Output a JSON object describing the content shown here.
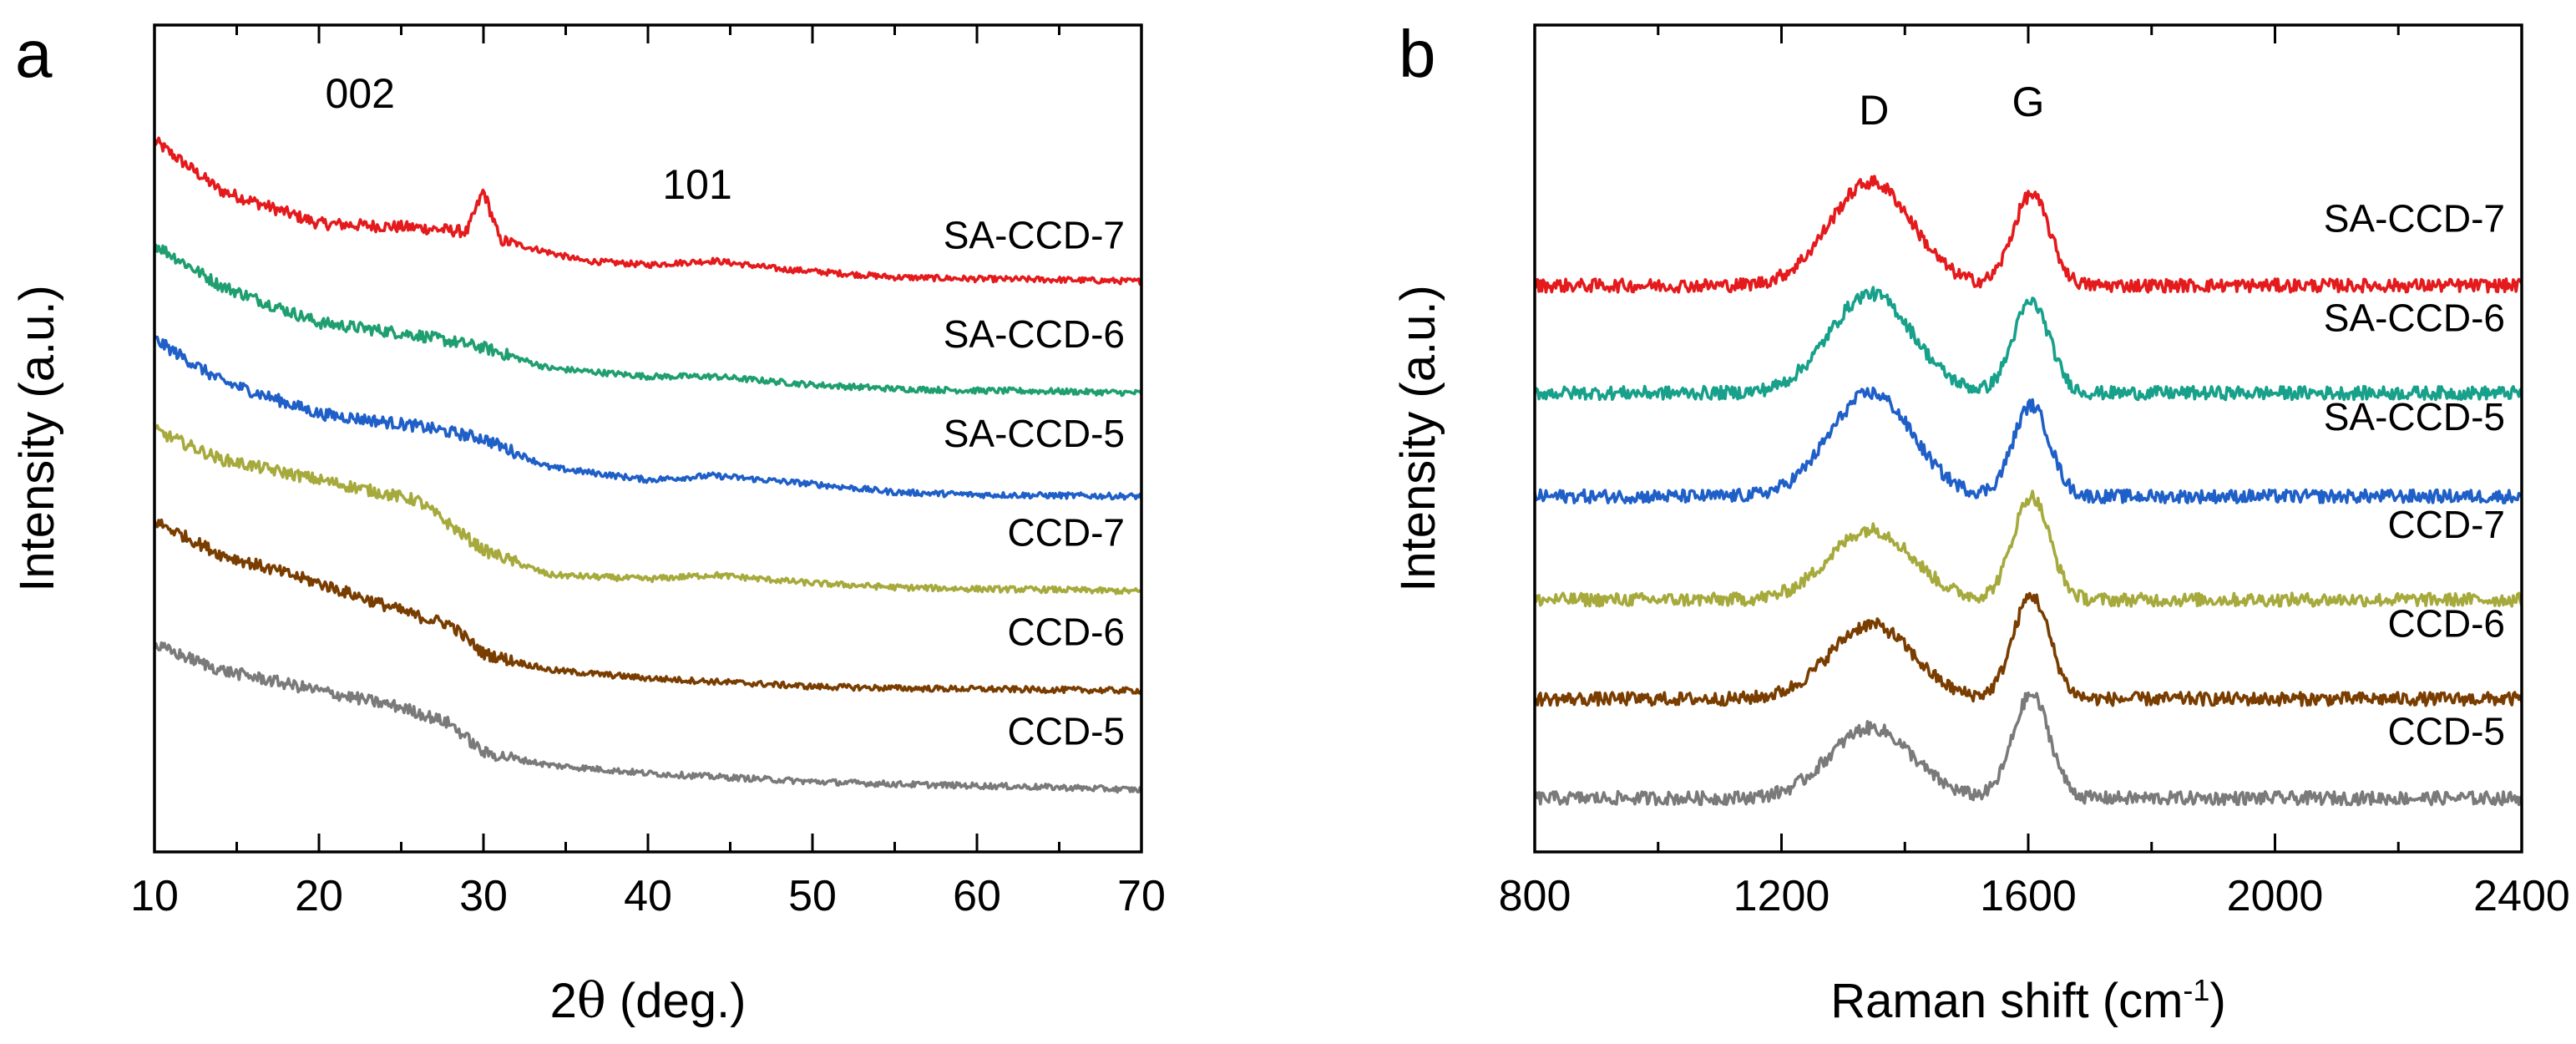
{
  "chart_data": [
    {
      "panel": "a",
      "type": "line",
      "xlabel_prefix": "2",
      "xlabel_symbol": "θ",
      "xlabel_suffix": " (deg.)",
      "ylabel": "Intensity (a.u.)",
      "xlim": [
        10,
        70
      ],
      "xticks": [
        "10",
        "20",
        "30",
        "40",
        "50",
        "60",
        "70"
      ],
      "ylim": [
        0,
        100
      ],
      "annotations": [
        {
          "text": "002",
          "x": 22.5,
          "y": 90
        },
        {
          "text": "101",
          "x": 43,
          "y": 79
        }
      ],
      "series": [
        {
          "name": "SA-CCD-7",
          "color": "#e41a1c",
          "label_y": 73,
          "x": [
            10,
            14,
            20,
            26,
            29,
            30,
            31,
            36,
            40,
            44,
            48,
            55,
            60,
            65,
            70
          ],
          "y": [
            86,
            80,
            76,
            75.5,
            75,
            80,
            74,
            71.5,
            71,
            71.5,
            70.5,
            69.5,
            69.3,
            69.2,
            69
          ]
        },
        {
          "name": "SA-CCD-6",
          "color": "#1f9f6f",
          "label_y": 61,
          "x": [
            10,
            14,
            20,
            26,
            30,
            34,
            40,
            44,
            50,
            55,
            60,
            65,
            70
          ],
          "y": [
            73.5,
            68.5,
            64,
            62.5,
            61,
            58.5,
            57.5,
            57.5,
            56.5,
            56,
            55.8,
            55.7,
            55.5
          ]
        },
        {
          "name": "SA-CCD-5",
          "color": "#1f5fc8",
          "label_y": 49,
          "x": [
            10,
            14,
            20,
            26,
            30,
            34,
            40,
            44,
            50,
            55,
            60,
            65,
            70
          ],
          "y": [
            62,
            57,
            53,
            51.5,
            50,
            46.5,
            45,
            45.5,
            44.5,
            43.5,
            43.2,
            43.1,
            43
          ]
        },
        {
          "name": "CCD-7",
          "color": "#a6aa3c",
          "label_y": 37,
          "x": [
            10,
            14,
            20,
            26,
            30,
            34,
            40,
            44,
            50,
            55,
            60,
            65,
            70
          ],
          "y": [
            51,
            47.5,
            45,
            42.5,
            36.5,
            33.5,
            33,
            33.5,
            32.5,
            32,
            31.8,
            31.7,
            31.5
          ]
        },
        {
          "name": "CCD-6",
          "color": "#7a3d00",
          "label_y": 25,
          "x": [
            10,
            14,
            20,
            26,
            28,
            30,
            34,
            40,
            45,
            50,
            55,
            60,
            65,
            70
          ],
          "y": [
            40,
            36,
            32.5,
            28.5,
            27.5,
            24,
            22,
            21,
            20.5,
            20,
            19.8,
            19.7,
            19.6,
            19.5
          ]
        },
        {
          "name": "CCD-5",
          "color": "#7a7a7a",
          "label_y": 13,
          "x": [
            10,
            14,
            20,
            25,
            28,
            30,
            34,
            40,
            45,
            50,
            55,
            60,
            65,
            70
          ],
          "y": [
            25,
            22,
            19.5,
            17.5,
            15.5,
            12,
            10.5,
            9.5,
            9,
            8.5,
            8.2,
            8,
            7.8,
            7.5
          ]
        }
      ]
    },
    {
      "panel": "b",
      "type": "line",
      "xlabel_prefix": "Raman shift (cm",
      "xlabel_sup": "-1",
      "xlabel_suffix": ")",
      "ylabel": "Intensity (a.u.)",
      "xlim": [
        800,
        2400
      ],
      "xticks": [
        "800",
        "1200",
        "1600",
        "2000",
        "2400"
      ],
      "ylim": [
        0,
        100
      ],
      "annotations": [
        {
          "text": "D",
          "x": 1350,
          "y": 88
        },
        {
          "text": "G",
          "x": 1600,
          "y": 89
        }
      ],
      "series": [
        {
          "name": "SA-CCD-7",
          "color": "#e41a1c",
          "label_y": 75,
          "baseline": 68.5,
          "d_peak": 12.5,
          "g_peak": 11
        },
        {
          "name": "SA-CCD-6",
          "color": "#17a08a",
          "label_y": 63,
          "baseline": 55.5,
          "d_peak": 12,
          "g_peak": 11
        },
        {
          "name": "SA-CCD-5",
          "color": "#1f5fc8",
          "label_y": 51,
          "baseline": 43,
          "d_peak": 12.5,
          "g_peak": 11
        },
        {
          "name": "CCD-7",
          "color": "#a6aa3c",
          "label_y": 38,
          "baseline": 30.5,
          "d_peak": 8.5,
          "g_peak": 12.5
        },
        {
          "name": "CCD-6",
          "color": "#7a3d00",
          "label_y": 26,
          "baseline": 18.5,
          "d_peak": 9,
          "g_peak": 12.5
        },
        {
          "name": "CCD-5",
          "color": "#7a7a7a",
          "label_y": 13,
          "baseline": 6.5,
          "d_peak": 8.5,
          "g_peak": 12.5
        }
      ]
    }
  ]
}
